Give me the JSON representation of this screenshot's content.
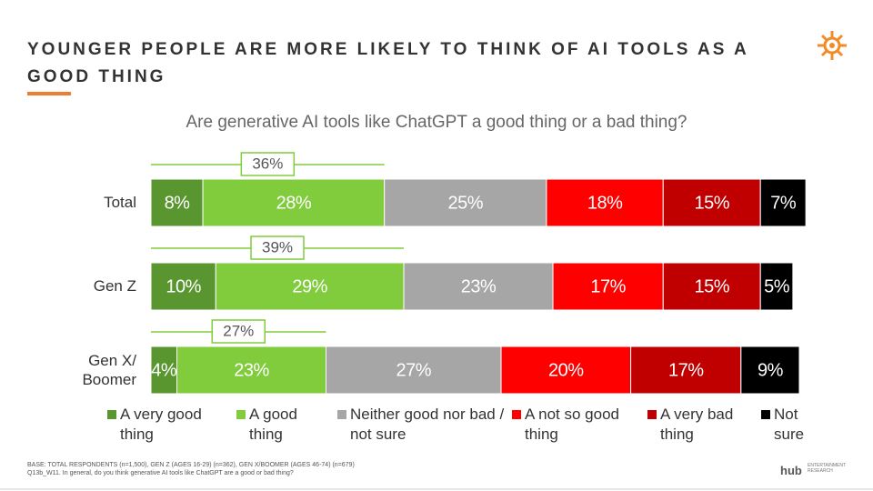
{
  "chart_data": {
    "type": "stacked-bar-horizontal",
    "title": "YOUNGER PEOPLE ARE MORE LIKELY TO THINK OF AI TOOLS AS A GOOD THING",
    "subtitle": "Are generative AI tools like ChatGPT a good thing or a bad thing?",
    "categories": [
      "Total",
      "Gen Z",
      "Gen X/ Boomer"
    ],
    "xlim": [
      0,
      100
    ],
    "series": [
      {
        "name": "A very good thing",
        "color": "#5a9630",
        "values": [
          8,
          10,
          4
        ],
        "value_labels": [
          "8%",
          "10%",
          "4%"
        ]
      },
      {
        "name": "A good thing",
        "color": "#80cc3c",
        "values": [
          28,
          29,
          23
        ],
        "value_labels": [
          "28%",
          "29%",
          "23%"
        ]
      },
      {
        "name": "Neither good nor bad / not sure",
        "color": "#a6a6a6",
        "values": [
          25,
          23,
          27
        ],
        "value_labels": [
          "25%",
          "23%",
          "27%"
        ]
      },
      {
        "name": "A not so good thing",
        "color": "#ff0000",
        "values": [
          18,
          17,
          20
        ],
        "value_labels": [
          "18%",
          "17%",
          "20%"
        ]
      },
      {
        "name": "A very bad thing",
        "color": "#c00000",
        "values": [
          15,
          15,
          17
        ],
        "value_labels": [
          "15%",
          "15%",
          "17%"
        ]
      },
      {
        "name": "Not sure",
        "color": "#000000",
        "values": [
          7,
          5,
          9
        ],
        "value_labels": [
          "7%",
          "5%",
          "9%"
        ]
      }
    ],
    "net_values": [
      36,
      39,
      27
    ],
    "net_value_labels": [
      "36%",
      "39%",
      "27%"
    ],
    "net_color": "#80cc3c",
    "footnotes": [
      "BASE: TOTAL RESPONDENTS (n=1,500), GEN Z (AGES 16-29) (n=362), GEN X/BOOMER (AGES 46-74) (n=679)",
      "Q13b_W11. In general, do you think generative AI tools like ChatGPT are a good or bad thing?"
    ],
    "logo": "hub",
    "logo_subtext": "ENTERTAINMENT RESEARCH"
  }
}
